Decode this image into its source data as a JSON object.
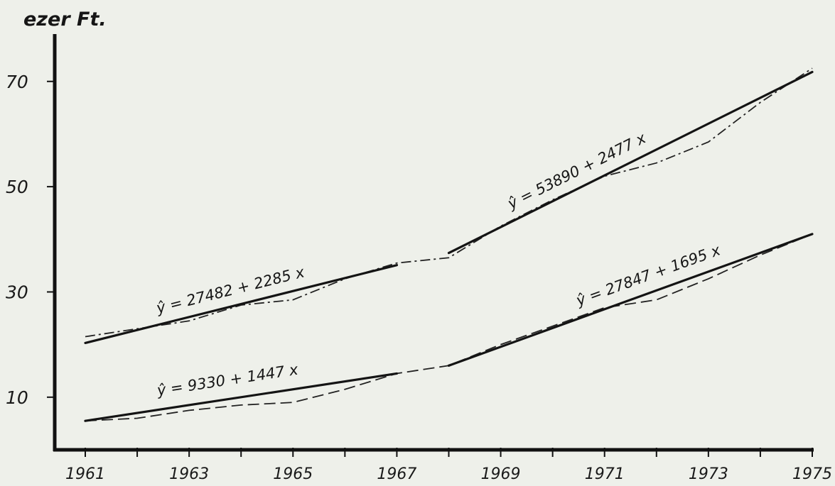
{
  "chart_data": {
    "type": "line",
    "ylabel": "ezer Ft.",
    "xlabel": "",
    "xlim": [
      1961,
      1975
    ],
    "ylim": [
      0,
      79
    ],
    "x_ticks": [
      1961,
      1963,
      1965,
      1967,
      1969,
      1971,
      1973,
      1975
    ],
    "y_ticks": [
      10,
      30,
      50,
      70
    ],
    "grid": false,
    "series": [
      {
        "style": "dash-dot",
        "x": [
          1961,
          1962,
          1963,
          1964,
          1965,
          1966,
          1967,
          1968,
          1969,
          1970,
          1971,
          1972,
          1973,
          1974,
          1975
        ],
        "values": [
          21.5,
          23,
          24.5,
          27.5,
          28.5,
          32.5,
          35.5,
          36.5,
          42.5,
          47.5,
          52,
          54.5,
          58.5,
          66,
          72.5
        ]
      },
      {
        "style": "dash",
        "x": [
          1961,
          1962,
          1963,
          1964,
          1965,
          1966,
          1967,
          1968,
          1969,
          1970,
          1971,
          1972,
          1973,
          1974,
          1975
        ],
        "values": [
          5.5,
          6,
          7.5,
          8.5,
          9,
          11.5,
          14.5,
          16,
          20,
          23.5,
          27,
          28.5,
          32.5,
          37,
          41
        ]
      }
    ],
    "trend_lines": [
      {
        "label": "ŷ = 27482 + 2285 x",
        "x": [
          1961,
          1967
        ],
        "values": [
          20.3,
          35.1
        ]
      },
      {
        "label": "ŷ = 53890 + 2477 x",
        "x": [
          1968,
          1975
        ],
        "values": [
          37.4,
          71.8
        ]
      },
      {
        "label": "ŷ = 9330 + 1447 x",
        "x": [
          1961,
          1967
        ],
        "values": [
          5.5,
          14.5
        ]
      },
      {
        "label": "ŷ = 27847 + 1695 x",
        "x": [
          1968,
          1975
        ],
        "values": [
          16,
          41
        ]
      }
    ]
  }
}
